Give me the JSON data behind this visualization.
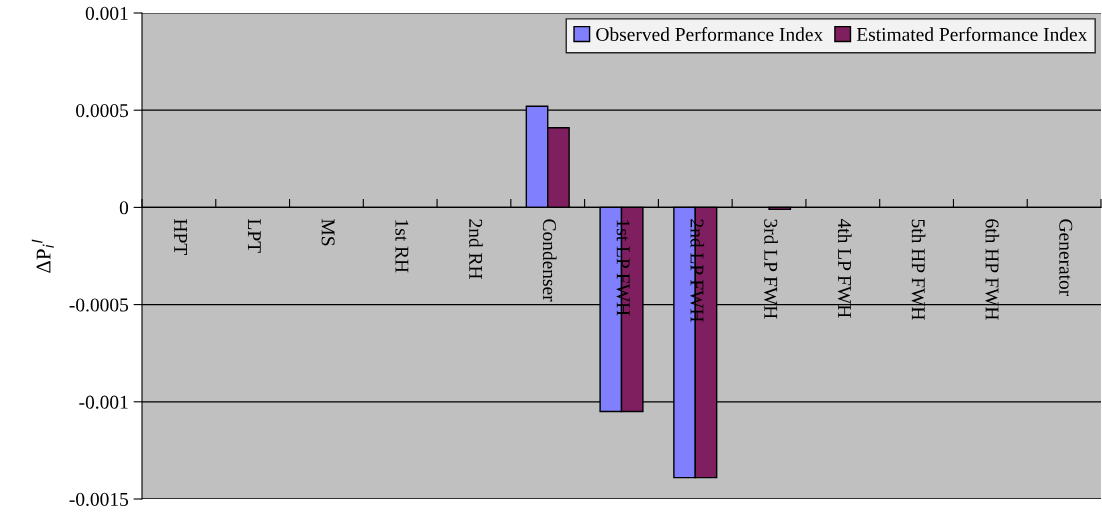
{
  "chart_data": {
    "type": "bar",
    "ylabel": "ΔP$_{i}$$^{I}$",
    "categories": [
      "HPT",
      "LPT",
      "MS",
      "1st RH",
      "2nd RH",
      "Condenser",
      "1st LP FWH",
      "2nd LP FWH",
      "3rd LP FWH",
      "4th LP FWH",
      "5th HP FWH",
      "6th HP FWH",
      "Generator"
    ],
    "series": [
      {
        "name": "Observed Performance Index",
        "color": "#8080ff",
        "values": [
          null,
          null,
          null,
          null,
          null,
          0.00052,
          -0.00105,
          -0.00139,
          null,
          null,
          null,
          null,
          null
        ]
      },
      {
        "name": "Estimated Performance Index",
        "color": "#7f1f5f",
        "values": [
          null,
          null,
          null,
          null,
          null,
          0.00041,
          -0.00105,
          -0.00139,
          -1e-05,
          null,
          null,
          null,
          null
        ]
      }
    ],
    "ylim": [
      -0.0015,
      0.001
    ],
    "yticks": [
      -0.0015,
      -0.001,
      -0.0005,
      0,
      0.0005,
      0.001
    ],
    "grid": "y",
    "legend": "top right"
  }
}
